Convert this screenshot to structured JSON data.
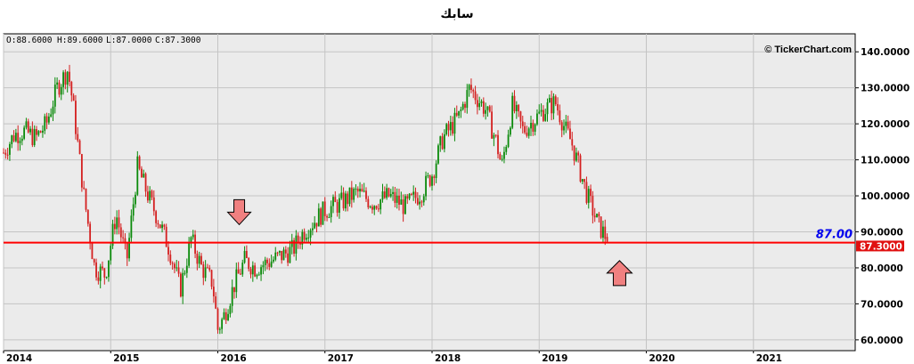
{
  "title": "سابك",
  "ohlc_readout": {
    "open": "O:88.6000",
    "high": "H:89.6000",
    "low": "L:87.0000",
    "close": "C:87.3000"
  },
  "watermark": "© TickerChart.com",
  "colors": {
    "up": "#0a8a0a",
    "down": "#d42020",
    "support_line": "#ff0000",
    "last_price_bg": "#e01010",
    "line_label": "#0000ee",
    "arrow_fill": "#f08080",
    "plot_bg": "#ebebeb"
  },
  "chart_data": {
    "type": "candlestick",
    "ylim": [
      57,
      145
    ],
    "y_ticks": [
      "60.0000",
      "70.0000",
      "80.0000",
      "90.0000",
      "100.0000",
      "110.0000",
      "120.0000",
      "130.0000",
      "140.0000"
    ],
    "x_ticks": [
      "2014",
      "2015",
      "2016",
      "2017",
      "2018",
      "2019",
      "2020",
      "2021"
    ],
    "grid": true,
    "horizontal_line": {
      "value": 87.0,
      "label": "87.00"
    },
    "last_price": {
      "value": 87.3,
      "label": "87.3000"
    },
    "annotations": [
      {
        "type": "arrow-down",
        "x": 2016.2,
        "y": 92
      },
      {
        "type": "arrow-up",
        "x": 2019.75,
        "y": 82
      }
    ],
    "closes": [
      [
        2014.0,
        112
      ],
      [
        2014.1,
        117
      ],
      [
        2014.2,
        118
      ],
      [
        2014.3,
        116
      ],
      [
        2014.4,
        120
      ],
      [
        2014.5,
        130
      ],
      [
        2014.6,
        135
      ],
      [
        2014.65,
        125
      ],
      [
        2014.75,
        100
      ],
      [
        2014.85,
        80
      ],
      [
        2014.95,
        78
      ],
      [
        2015.05,
        95
      ],
      [
        2015.15,
        82
      ],
      [
        2015.25,
        108
      ],
      [
        2015.35,
        100
      ],
      [
        2015.45,
        93
      ],
      [
        2015.55,
        85
      ],
      [
        2015.65,
        74
      ],
      [
        2015.75,
        88
      ],
      [
        2015.85,
        80
      ],
      [
        2015.95,
        76
      ],
      [
        2016.0,
        63
      ],
      [
        2016.05,
        66
      ],
      [
        2016.15,
        75
      ],
      [
        2016.25,
        82
      ],
      [
        2016.35,
        80
      ],
      [
        2016.5,
        82
      ],
      [
        2016.7,
        85
      ],
      [
        2016.8,
        90
      ],
      [
        2016.9,
        93
      ],
      [
        2017.0,
        96
      ],
      [
        2017.15,
        98
      ],
      [
        2017.3,
        101
      ],
      [
        2017.45,
        98
      ],
      [
        2017.6,
        100
      ],
      [
        2017.75,
        97
      ],
      [
        2017.9,
        101
      ],
      [
        2018.0,
        106
      ],
      [
        2018.1,
        116
      ],
      [
        2018.25,
        122
      ],
      [
        2018.35,
        130
      ],
      [
        2018.5,
        124
      ],
      [
        2018.6,
        115
      ],
      [
        2018.65,
        108
      ],
      [
        2018.75,
        125
      ],
      [
        2018.85,
        118
      ],
      [
        2018.95,
        121
      ],
      [
        2019.05,
        124
      ],
      [
        2019.15,
        126
      ],
      [
        2019.2,
        122
      ],
      [
        2019.25,
        118
      ],
      [
        2019.3,
        115
      ],
      [
        2019.35,
        110
      ],
      [
        2019.45,
        100
      ],
      [
        2019.55,
        92
      ],
      [
        2019.65,
        87.3
      ]
    ]
  }
}
